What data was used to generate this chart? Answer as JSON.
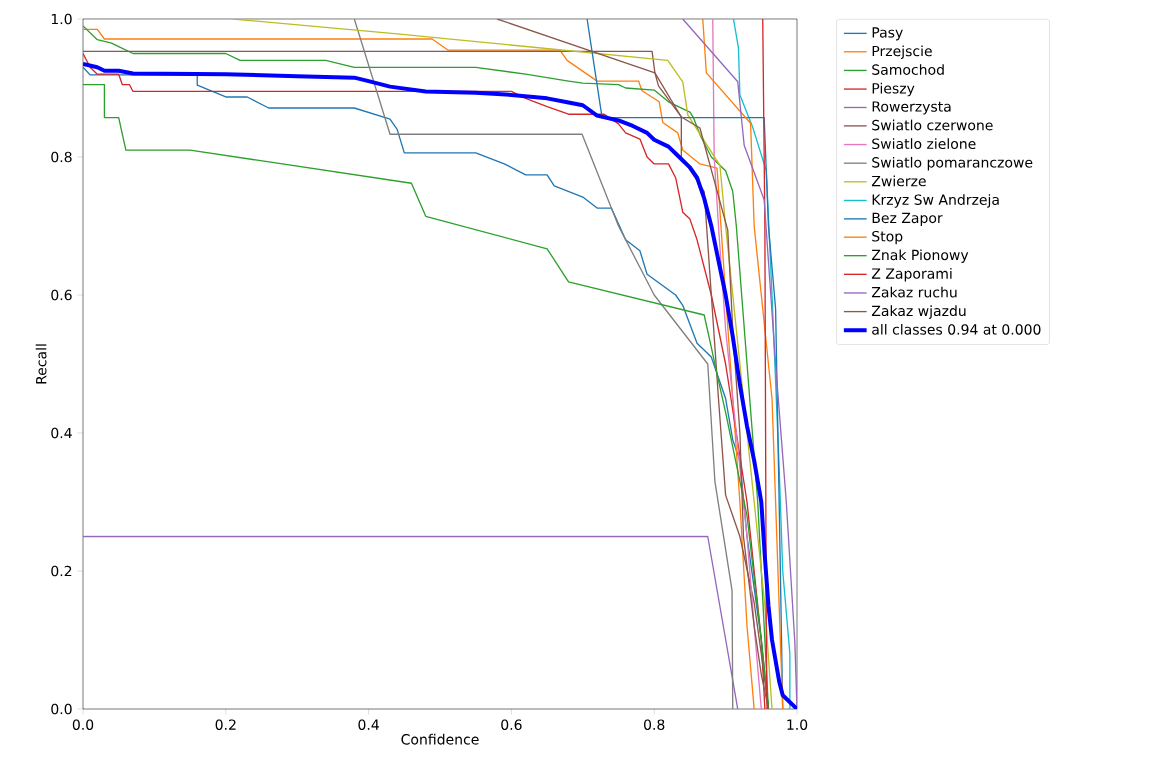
{
  "chart_data": {
    "type": "line",
    "xlabel": "Confidence",
    "ylabel": "Recall",
    "xlim": [
      0,
      1
    ],
    "ylim": [
      0,
      1
    ],
    "xticks": [
      {
        "value": 0,
        "label": "0.0"
      },
      {
        "value": 0.2,
        "label": "0.2"
      },
      {
        "value": 0.4,
        "label": "0.4"
      },
      {
        "value": 0.6,
        "label": "0.6"
      },
      {
        "value": 0.8,
        "label": "0.8"
      },
      {
        "value": 1,
        "label": "1.0"
      }
    ],
    "yticks": [
      {
        "value": 0,
        "label": "0.0"
      },
      {
        "value": 0.2,
        "label": "0.2"
      },
      {
        "value": 0.4,
        "label": "0.4"
      },
      {
        "value": 0.6,
        "label": "0.6"
      },
      {
        "value": 0.8,
        "label": "0.8"
      },
      {
        "value": 1,
        "label": "1.0"
      }
    ],
    "legend": "right",
    "series": [
      {
        "name": "Pasy",
        "color": "#1f77b4",
        "x": [
          0,
          0.01,
          0.16,
          0.16,
          0.2,
          0.23,
          0.26,
          0.38,
          0.43,
          0.44,
          0.45,
          0.55,
          0.59,
          0.62,
          0.65,
          0.66,
          0.7,
          0.72,
          0.74,
          0.76,
          0.78,
          0.79,
          0.83,
          0.84,
          0.86,
          0.88,
          0.89,
          0.9,
          0.91,
          0.92,
          0.93,
          0.95,
          0.96
        ],
        "values": [
          0.93,
          0.919,
          0.919,
          0.904,
          0.887,
          0.887,
          0.871,
          0.871,
          0.855,
          0.84,
          0.806,
          0.806,
          0.79,
          0.774,
          0.774,
          0.758,
          0.742,
          0.726,
          0.726,
          0.68,
          0.664,
          0.63,
          0.6,
          0.585,
          0.53,
          0.51,
          0.48,
          0.45,
          0.39,
          0.36,
          0.25,
          0.1,
          0
        ]
      },
      {
        "name": "Przejscie",
        "color": "#ff7f0e",
        "x": [
          0,
          0.02,
          0.03,
          0.489,
          0.511,
          0.668,
          0.678,
          0.72,
          0.778,
          0.783,
          0.807,
          0.812,
          0.833,
          0.84,
          0.864,
          0.888,
          0.9,
          0.91,
          0.92,
          0.93,
          0.94
        ],
        "values": [
          0.985,
          0.985,
          0.971,
          0.971,
          0.955,
          0.955,
          0.94,
          0.91,
          0.91,
          0.896,
          0.88,
          0.85,
          0.835,
          0.81,
          0.79,
          0.784,
          0.6,
          0.45,
          0.3,
          0.12,
          0
        ]
      },
      {
        "name": "Samochod",
        "color": "#2ca02c",
        "x": [
          0,
          0.01,
          0.02,
          0.04,
          0.05,
          0.07,
          0.2,
          0.22,
          0.34,
          0.38,
          0.55,
          0.62,
          0.68,
          0.7,
          0.75,
          0.76,
          0.8,
          0.82,
          0.85,
          0.855,
          0.865,
          0.88,
          0.9,
          0.91,
          0.915,
          0.93,
          0.945,
          0.955,
          0.96
        ],
        "values": [
          0.99,
          0.98,
          0.97,
          0.965,
          0.96,
          0.95,
          0.95,
          0.94,
          0.94,
          0.93,
          0.93,
          0.92,
          0.91,
          0.907,
          0.905,
          0.9,
          0.897,
          0.88,
          0.865,
          0.857,
          0.83,
          0.8,
          0.78,
          0.75,
          0.7,
          0.5,
          0.3,
          0.1,
          0
        ]
      },
      {
        "name": "Pieszy",
        "color": "#d62728",
        "x": [
          0,
          0.005,
          0.01,
          0.02,
          0.05,
          0.055,
          0.065,
          0.07,
          0.6,
          0.62,
          0.65,
          0.68,
          0.73,
          0.75,
          0.76,
          0.78,
          0.79,
          0.8,
          0.82,
          0.83,
          0.84,
          0.85,
          0.86,
          0.88,
          0.9,
          0.93,
          0.95,
          0.955
        ],
        "values": [
          0.95,
          0.94,
          0.93,
          0.92,
          0.92,
          0.905,
          0.905,
          0.895,
          0.895,
          0.885,
          0.873,
          0.862,
          0.862,
          0.848,
          0.835,
          0.826,
          0.8,
          0.79,
          0.79,
          0.77,
          0.72,
          0.71,
          0.68,
          0.6,
          0.5,
          0.3,
          0.1,
          0
        ]
      },
      {
        "name": "Rowerzysta",
        "color": "#9467bd",
        "x": [
          0,
          0.875,
          0.917
        ],
        "values": [
          0.25,
          0.25,
          0
        ]
      },
      {
        "name": "Swiatlo czerwone",
        "color": "#8c564b",
        "x": [
          0,
          0.797,
          0.801,
          0.806,
          0.838,
          0.838,
          0.87,
          0.88,
          0.89,
          0.9,
          0.92,
          0.94,
          0.95,
          0.96
        ],
        "values": [
          0.953,
          0.953,
          0.922,
          0.903,
          0.858,
          0.8,
          0.75,
          0.6,
          0.45,
          0.31,
          0.25,
          0.154,
          0.08,
          0
        ]
      },
      {
        "name": "Swiatlo zielone",
        "color": "#e377c2",
        "x": [
          0.882,
          0.884,
          0.89,
          0.9,
          0.92,
          0.93,
          0.94,
          0.95
        ],
        "values": [
          1,
          0.8,
          0.7,
          0.55,
          0.35,
          0.25,
          0.12,
          0
        ]
      },
      {
        "name": "Swiatlo pomaranczowe",
        "color": "#7f7f7f",
        "x": [
          0.38,
          0.43,
          0.699,
          0.75,
          0.8,
          0.875,
          0.885,
          0.909,
          0.91
        ],
        "values": [
          1,
          0.833,
          0.833,
          0.7,
          0.6,
          0.5,
          0.33,
          0.172,
          0
        ]
      },
      {
        "name": "Zwierze",
        "color": "#bcbd22",
        "x": [
          0.21,
          0.444,
          0.504,
          0.819,
          0.84,
          0.847,
          0.892,
          0.9,
          0.92,
          0.94,
          0.955,
          0.965
        ],
        "values": [
          1,
          0.978,
          0.972,
          0.94,
          0.909,
          0.861,
          0.788,
          0.7,
          0.5,
          0.3,
          0.15,
          0
        ]
      },
      {
        "name": "Krzyz Sw Andrzeja",
        "color": "#17becf",
        "x": [
          0.911,
          0.918,
          0.92,
          0.938,
          0.957,
          0.965,
          0.975,
          0.98,
          0.99,
          0.99
        ],
        "values": [
          1,
          0.958,
          0.89,
          0.843,
          0.78,
          0.6,
          0.35,
          0.2,
          0.08,
          0
        ]
      },
      {
        "name": "Bez Zapor",
        "color": "#1f77b4",
        "x": [
          0.706,
          0.727,
          0.954,
          0.96,
          0.97,
          0.975,
          0.98
        ],
        "values": [
          1,
          0.857,
          0.857,
          0.7,
          0.58,
          0.3,
          0
        ]
      },
      {
        "name": "Stop",
        "color": "#ff7f0e",
        "x": [
          0.868,
          0.873,
          0.935,
          0.94,
          0.965,
          0.98
        ],
        "values": [
          1,
          0.922,
          0.849,
          0.7,
          0.45,
          0
        ]
      },
      {
        "name": "Znak Pionowy",
        "color": "#2ca02c",
        "x": [
          0,
          0.03,
          0.03,
          0.05,
          0.06,
          0.15,
          0.46,
          0.48,
          0.65,
          0.68,
          0.87,
          0.88,
          0.89,
          0.9,
          0.91,
          0.92,
          0.93,
          0.94,
          0.95,
          0.96
        ],
        "values": [
          0.905,
          0.905,
          0.857,
          0.857,
          0.81,
          0.81,
          0.762,
          0.714,
          0.667,
          0.619,
          0.571,
          0.524,
          0.476,
          0.43,
          0.38,
          0.33,
          0.28,
          0.19,
          0.1,
          0
        ]
      },
      {
        "name": "Z Zaporami",
        "color": "#d62728",
        "x": [
          0.952,
          0.955,
          0.957,
          0.958
        ],
        "values": [
          1,
          0.7,
          0.1,
          0
        ]
      },
      {
        "name": "Zakaz ruchu",
        "color": "#9467bd",
        "x": [
          0.84,
          0.917,
          0.926,
          0.954,
          0.97,
          0.985,
          0.997,
          1
        ],
        "values": [
          1,
          0.909,
          0.817,
          0.738,
          0.5,
          0.3,
          0.096,
          0
        ]
      },
      {
        "name": "Zakaz wjazdu",
        "color": "#8c564b",
        "x": [
          0.58,
          0.801,
          0.838,
          0.864,
          0.903,
          0.91,
          0.92,
          0.925,
          0.94,
          0.95,
          0.96
        ],
        "values": [
          1,
          0.922,
          0.858,
          0.842,
          0.694,
          0.55,
          0.4,
          0.25,
          0.12,
          0.05,
          0
        ]
      },
      {
        "name": "all classes 0.94 at 0.000",
        "color": "#0000ff",
        "x": [
          0,
          0.02,
          0.03,
          0.05,
          0.07,
          0.2,
          0.3,
          0.38,
          0.4,
          0.43,
          0.48,
          0.55,
          0.6,
          0.65,
          0.68,
          0.7,
          0.72,
          0.75,
          0.77,
          0.79,
          0.8,
          0.82,
          0.83,
          0.84,
          0.85,
          0.86,
          0.87,
          0.88,
          0.89,
          0.9,
          0.91,
          0.92,
          0.93,
          0.94,
          0.95,
          0.955,
          0.96,
          0.965,
          0.97,
          0.975,
          0.98,
          0.99,
          1
        ],
        "values": [
          0.935,
          0.93,
          0.925,
          0.925,
          0.921,
          0.92,
          0.917,
          0.915,
          0.91,
          0.902,
          0.895,
          0.893,
          0.89,
          0.885,
          0.879,
          0.875,
          0.86,
          0.853,
          0.845,
          0.835,
          0.825,
          0.815,
          0.805,
          0.795,
          0.785,
          0.77,
          0.74,
          0.7,
          0.65,
          0.6,
          0.54,
          0.47,
          0.41,
          0.36,
          0.3,
          0.22,
          0.15,
          0.1,
          0.07,
          0.04,
          0.02,
          0.01,
          0
        ]
      }
    ]
  }
}
